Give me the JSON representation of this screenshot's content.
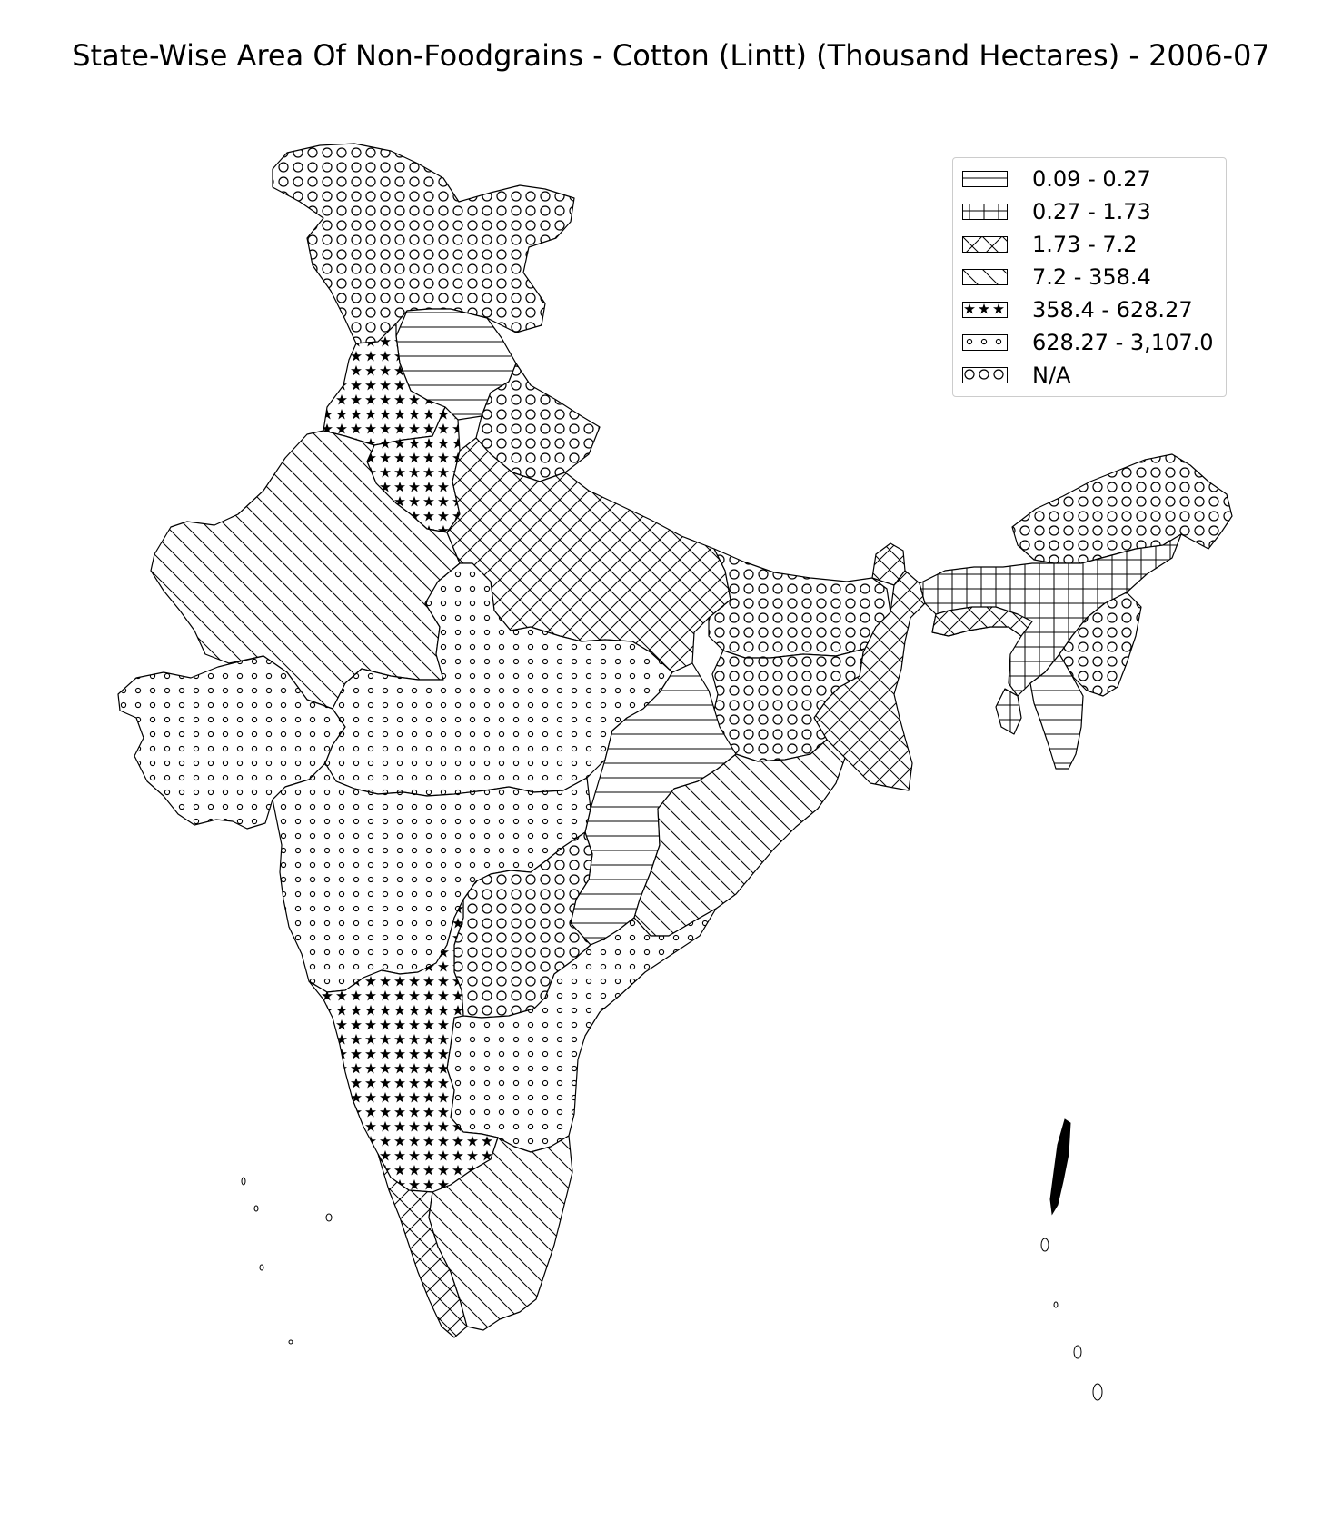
{
  "title": "State-Wise Area Of Non-Foodgrains - Cotton (Lintt) (Thousand Hectares) - 2006-07",
  "legend": {
    "items": [
      {
        "label": "0.09 - 0.27",
        "pattern": "horizontal-lines"
      },
      {
        "label": "0.27 - 1.73",
        "pattern": "grid"
      },
      {
        "label": "1.73 - 7.2",
        "pattern": "cross-hatch"
      },
      {
        "label": "7.2 - 358.4",
        "pattern": "diagonal-lines"
      },
      {
        "label": "358.4 - 628.27",
        "pattern": "stars"
      },
      {
        "label": "628.27 - 3,107.0",
        "pattern": "small-dots"
      },
      {
        "label": "N/A",
        "pattern": "large-circles"
      }
    ]
  },
  "colors": {
    "stroke": "#000000",
    "fill": "#ffffff",
    "legend_border": "#cccccc"
  }
}
